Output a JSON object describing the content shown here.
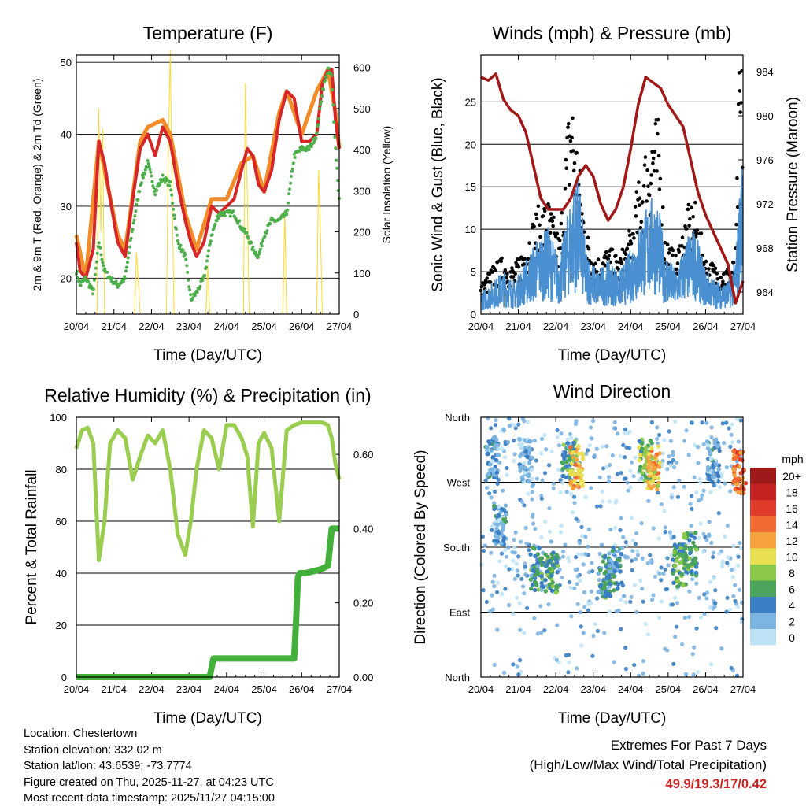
{
  "chart_data": [
    {
      "type": "line",
      "title": "Temperature (F)",
      "xlabel": "Time (Day/UTC)",
      "ylabel": "2m & 9m T (Red, Orange) & 2m Td (Green)",
      "y2label": "Solar Insolation (Yellow)",
      "x_ticks": [
        "20/04",
        "21/04",
        "22/04",
        "23/04",
        "24/04",
        "25/04",
        "26/04",
        "27/04"
      ],
      "xlim": [
        0,
        7
      ],
      "ylim": [
        15,
        51
      ],
      "y_ticks": [
        20,
        30,
        40,
        50
      ],
      "y2lim": [
        0,
        630
      ],
      "y2_ticks": [
        0,
        100,
        200,
        300,
        400,
        500,
        600
      ],
      "grid_y": [
        20,
        30,
        40,
        50
      ],
      "series": [
        {
          "name": "2m T",
          "color": "#d62728",
          "x": [
            0,
            0.1,
            0.25,
            0.45,
            0.6,
            0.75,
            0.9,
            1.1,
            1.3,
            1.5,
            1.7,
            1.9,
            2.1,
            2.3,
            2.5,
            2.7,
            2.9,
            3.05,
            3.2,
            3.4,
            3.6,
            3.8,
            4.0,
            4.2,
            4.4,
            4.55,
            4.7,
            4.85,
            5.0,
            5.2,
            5.4,
            5.6,
            5.8,
            6.0,
            6.2,
            6.4,
            6.55,
            6.7,
            6.8,
            6.9,
            7.0
          ],
          "values": [
            25,
            21,
            20,
            24,
            39,
            36,
            31,
            25,
            23,
            31,
            38,
            40,
            37,
            41,
            39,
            33,
            28,
            25,
            23,
            25,
            30,
            29,
            30,
            31,
            35,
            38,
            37,
            33,
            32,
            35,
            42,
            46,
            45,
            39,
            39,
            40,
            47,
            49,
            49,
            42,
            38
          ]
        },
        {
          "name": "9m T",
          "color": "#f28c28",
          "x": [
            0,
            0.25,
            0.6,
            1.1,
            1.3,
            1.7,
            1.9,
            2.3,
            2.5,
            2.9,
            3.2,
            3.6,
            4.0,
            4.4,
            4.7,
            5.0,
            5.4,
            5.6,
            6.0,
            6.4,
            6.7,
            6.9,
            7.0
          ],
          "values": [
            26,
            20,
            39,
            26,
            24,
            39,
            41,
            42,
            40,
            29,
            24,
            31,
            31,
            36,
            37,
            32,
            43,
            46,
            40,
            46,
            49,
            43,
            38
          ]
        },
        {
          "name": "2m Td",
          "color": "#4daf4a",
          "x": [
            0,
            0.1,
            0.25,
            0.45,
            0.6,
            0.75,
            0.9,
            1.1,
            1.3,
            1.5,
            1.7,
            1.9,
            2.1,
            2.3,
            2.5,
            2.7,
            2.9,
            3.05,
            3.2,
            3.4,
            3.6,
            3.8,
            4.0,
            4.2,
            4.4,
            4.55,
            4.7,
            4.85,
            5.0,
            5.2,
            5.4,
            5.6,
            5.8,
            6.0,
            6.2,
            6.4,
            6.55,
            6.7,
            6.8,
            6.9,
            7.0
          ],
          "values": [
            21,
            19,
            20,
            18,
            25,
            21,
            20,
            19,
            20,
            27,
            33,
            36,
            32,
            34,
            33,
            25,
            23,
            17,
            18,
            20,
            26,
            29,
            29,
            29,
            27,
            26,
            24,
            23,
            26,
            28,
            28,
            29,
            37,
            38,
            38,
            40,
            46,
            49,
            48,
            38,
            31
          ]
        },
        {
          "name": "Solar Insolation",
          "color": "#ffd92f",
          "axis": "y2",
          "x": [
            0.55,
            0.6,
            0.65,
            0.7,
            0.75,
            1.55,
            1.6,
            1.65,
            1.7,
            2.4,
            2.45,
            2.5,
            2.55,
            2.6,
            3.45,
            3.5,
            3.55,
            4.45,
            4.5,
            4.55,
            4.6,
            5.5,
            5.55,
            5.6,
            6.4,
            6.45,
            6.5,
            6.55
          ],
          "values": [
            0,
            500,
            200,
            450,
            0,
            0,
            150,
            80,
            0,
            0,
            400,
            640,
            300,
            0,
            0,
            120,
            0,
            0,
            560,
            300,
            0,
            0,
            250,
            0,
            0,
            350,
            200,
            0
          ]
        }
      ]
    },
    {
      "type": "line",
      "title": "Winds (mph) & Pressure (mb)",
      "xlabel": "Time (Day/UTC)",
      "ylabel": "Sonic Wind & Gust (Blue, Black)",
      "y2label": "Station Pressure (Maroon)",
      "x_ticks": [
        "20/04",
        "21/04",
        "22/04",
        "23/04",
        "24/04",
        "25/04",
        "26/04",
        "27/04"
      ],
      "xlim": [
        0,
        7
      ],
      "ylim": [
        0,
        30.5
      ],
      "y_ticks": [
        0,
        5,
        10,
        15,
        20,
        25
      ],
      "y2lim": [
        962,
        985.5
      ],
      "y2_ticks": [
        964,
        968,
        972,
        976,
        980,
        984
      ],
      "grid_y": [
        5,
        10,
        15,
        20,
        25
      ],
      "series": [
        {
          "name": "Sonic Wind",
          "color": "#4a90d0",
          "x": [
            0,
            0.3,
            0.6,
            0.9,
            1.2,
            1.5,
            1.8,
            2.1,
            2.4,
            2.6,
            2.8,
            3.1,
            3.4,
            3.7,
            4.0,
            4.3,
            4.6,
            4.75,
            4.9,
            5.2,
            5.5,
            5.7,
            6.0,
            6.3,
            6.6,
            6.8,
            6.9,
            7.0
          ],
          "values": [
            2,
            3,
            4,
            3,
            5,
            7,
            8,
            5,
            11,
            13,
            6,
            4,
            5,
            4,
            6,
            9,
            11,
            10,
            6,
            4,
            7,
            8,
            4,
            3,
            3,
            5,
            11,
            16
          ]
        },
        {
          "name": "Gust",
          "color": "#000000",
          "x": [
            0,
            0.3,
            0.6,
            0.9,
            1.2,
            1.5,
            1.8,
            2.1,
            2.4,
            2.6,
            2.8,
            3.1,
            3.4,
            3.7,
            4.0,
            4.3,
            4.6,
            4.75,
            4.9,
            5.2,
            5.5,
            5.7,
            6.0,
            6.3,
            6.6,
            6.8,
            6.9,
            7.0
          ],
          "values": [
            3,
            5,
            6,
            5,
            8,
            11,
            12,
            8,
            25,
            17,
            9,
            6,
            7,
            6,
            9,
            16,
            21,
            20,
            9,
            6,
            11,
            12,
            6,
            5,
            5,
            6,
            27,
            26
          ]
        },
        {
          "name": "Station Pressure",
          "color": "#a01818",
          "axis": "y2",
          "x": [
            0,
            0.2,
            0.4,
            0.6,
            0.8,
            1.0,
            1.2,
            1.4,
            1.6,
            1.8,
            2.0,
            2.2,
            2.4,
            2.6,
            2.8,
            3.0,
            3.2,
            3.4,
            3.6,
            3.8,
            4.0,
            4.2,
            4.4,
            4.6,
            4.8,
            5.0,
            5.2,
            5.4,
            5.6,
            5.8,
            6.0,
            6.2,
            6.4,
            6.6,
            6.8,
            6.9,
            7.0
          ],
          "values": [
            983.5,
            983.2,
            983.8,
            981.5,
            980.5,
            980,
            978.5,
            975.5,
            972.5,
            971.5,
            971.5,
            971.5,
            972.5,
            974.5,
            975.5,
            974.5,
            972,
            970.5,
            971.5,
            973.5,
            977,
            981,
            983.5,
            983,
            982.5,
            981,
            980,
            979,
            976,
            973,
            971,
            969.5,
            968,
            966.5,
            963,
            964,
            965
          ]
        }
      ]
    },
    {
      "type": "line",
      "title": "Relative Humidity (%) & Precipitation (in)",
      "xlabel": "Time (Day/UTC)",
      "ylabel": "Percent & Total Rainfall",
      "x_ticks": [
        "20/04",
        "21/04",
        "22/04",
        "23/04",
        "24/04",
        "25/04",
        "26/04",
        "27/04"
      ],
      "xlim": [
        0,
        7
      ],
      "ylim": [
        0,
        100
      ],
      "y_ticks": [
        0,
        20,
        40,
        60,
        80,
        100
      ],
      "y2lim": [
        0,
        0.7
      ],
      "y2_ticks": [
        "0.00",
        "0.20",
        "0.40",
        "0.60"
      ],
      "grid_y": [
        20,
        40,
        60,
        80,
        100
      ],
      "series": [
        {
          "name": "Relative Humidity",
          "color": "#9acd50",
          "x": [
            0,
            0.15,
            0.3,
            0.45,
            0.6,
            0.75,
            0.9,
            1.1,
            1.3,
            1.5,
            1.7,
            1.9,
            2.1,
            2.3,
            2.5,
            2.7,
            2.9,
            3.05,
            3.2,
            3.4,
            3.6,
            3.8,
            4.0,
            4.2,
            4.4,
            4.55,
            4.7,
            4.85,
            5.0,
            5.2,
            5.4,
            5.6,
            5.8,
            6.0,
            6.2,
            6.4,
            6.55,
            6.7,
            6.8,
            6.9,
            7.0
          ],
          "values": [
            88,
            95,
            96,
            90,
            45,
            60,
            90,
            95,
            92,
            76,
            85,
            93,
            90,
            95,
            80,
            55,
            47,
            60,
            80,
            95,
            92,
            80,
            97,
            97,
            92,
            85,
            58,
            90,
            94,
            88,
            60,
            95,
            97,
            98,
            98,
            98,
            98,
            97,
            92,
            82,
            76
          ]
        },
        {
          "name": "Total Precipitation",
          "color": "#44b03c",
          "axis": "y2",
          "x": [
            0,
            3.55,
            3.65,
            3.75,
            5.8,
            5.85,
            5.9,
            5.95,
            6.1,
            6.5,
            6.7,
            6.8,
            7.0
          ],
          "values": [
            0,
            0,
            0.05,
            0.05,
            0.05,
            0.15,
            0.27,
            0.28,
            0.28,
            0.29,
            0.3,
            0.4,
            0.4
          ]
        }
      ]
    },
    {
      "type": "scatter",
      "title": "Wind Direction",
      "xlabel": "Time (Day/UTC)",
      "ylabel": "Direction (Colored By Speed)",
      "x_ticks": [
        "20/04",
        "21/04",
        "22/04",
        "23/04",
        "24/04",
        "25/04",
        "26/04",
        "27/04"
      ],
      "xlim": [
        0,
        7
      ],
      "ylim": [
        0,
        360
      ],
      "y_tick_labels": [
        "North",
        "East",
        "South",
        "West",
        "North"
      ],
      "y_tick_values": [
        0,
        90,
        180,
        270,
        360
      ],
      "legend_title": "mph",
      "legend_labels": [
        "20+",
        "18",
        "16",
        "14",
        "12",
        "10",
        "8",
        "6",
        "4",
        "2",
        "0"
      ],
      "legend_colors": [
        "#9e1a1a",
        "#c42222",
        "#e03a2a",
        "#f06a32",
        "#f6a33f",
        "#e8e050",
        "#8cc84a",
        "#4aa45a",
        "#3b7fc4",
        "#7cb4e2",
        "#bfe3f6"
      ],
      "clusters": [
        {
          "x": 0.3,
          "dir": 305,
          "speed": 3
        },
        {
          "x": 0.5,
          "dir": 210,
          "speed": 3
        },
        {
          "x": 1.2,
          "dir": 300,
          "speed": 2
        },
        {
          "x": 1.5,
          "dir": 150,
          "speed": 5
        },
        {
          "x": 1.9,
          "dir": 145,
          "speed": 6
        },
        {
          "x": 2.35,
          "dir": 300,
          "speed": 5
        },
        {
          "x": 2.55,
          "dir": 290,
          "speed": 11
        },
        {
          "x": 3.3,
          "dir": 140,
          "speed": 5
        },
        {
          "x": 3.6,
          "dir": 150,
          "speed": 4
        },
        {
          "x": 4.4,
          "dir": 300,
          "speed": 7
        },
        {
          "x": 4.6,
          "dir": 290,
          "speed": 11
        },
        {
          "x": 5.3,
          "dir": 155,
          "speed": 6
        },
        {
          "x": 5.6,
          "dir": 170,
          "speed": 6
        },
        {
          "x": 6.2,
          "dir": 300,
          "speed": 3
        },
        {
          "x": 6.9,
          "dir": 285,
          "speed": 14
        }
      ]
    }
  ],
  "station": {
    "location": "Location: Chestertown",
    "elevation": "Station elevation: 332.02 m",
    "latlon": "Station lat/lon: 43.6539; -73.7774",
    "created": "Figure created on Thu, 2025-11-27, at 04:23 UTC",
    "recent": "Most recent data timestamp: 2025/11/27 04:15:00"
  },
  "extremes": {
    "title": "Extremes For Past 7 Days",
    "subtitle": "(High/Low/Max Wind/Total Precipitation)",
    "values": "49.9/19.3/17/0.42",
    "values_color": "#cc2222"
  }
}
